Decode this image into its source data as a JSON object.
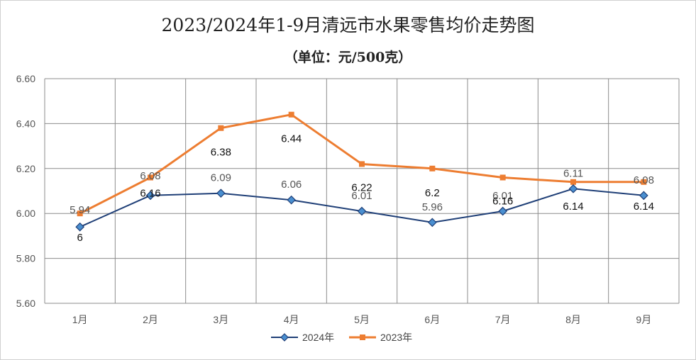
{
  "chart_data": {
    "type": "line",
    "title": "2023/2024年1-9月清远市水果零售均价走势图",
    "subtitle": "（单位：元/500克）",
    "categories": [
      "1月",
      "2月",
      "3月",
      "4月",
      "5月",
      "6月",
      "7月",
      "8月",
      "9月"
    ],
    "ylim": [
      5.6,
      6.6
    ],
    "yticks": [
      "6.60",
      "6.40",
      "6.20",
      "6.00",
      "5.80",
      "5.60"
    ],
    "grid": true,
    "legend_position": "bottom",
    "series": [
      {
        "name": "2024年",
        "color": "#1f3f77",
        "marker": "diamond",
        "values": [
          5.94,
          6.08,
          6.09,
          6.06,
          6.01,
          5.96,
          6.01,
          6.11,
          6.08
        ],
        "labels": [
          "5.94",
          "6.08",
          "6.09",
          "6.06",
          "6.01",
          "5.96",
          "6.01",
          "6.11",
          "6.08"
        ]
      },
      {
        "name": "2023年",
        "color": "#ed7d31",
        "marker": "square",
        "values": [
          6.0,
          6.16,
          6.38,
          6.44,
          6.22,
          6.2,
          6.16,
          6.14,
          6.14
        ],
        "labels": [
          "6",
          "6.16",
          "6.38",
          "6.44",
          "6.22",
          "6.2",
          "6.16",
          "6.14",
          "6.14"
        ]
      }
    ]
  }
}
